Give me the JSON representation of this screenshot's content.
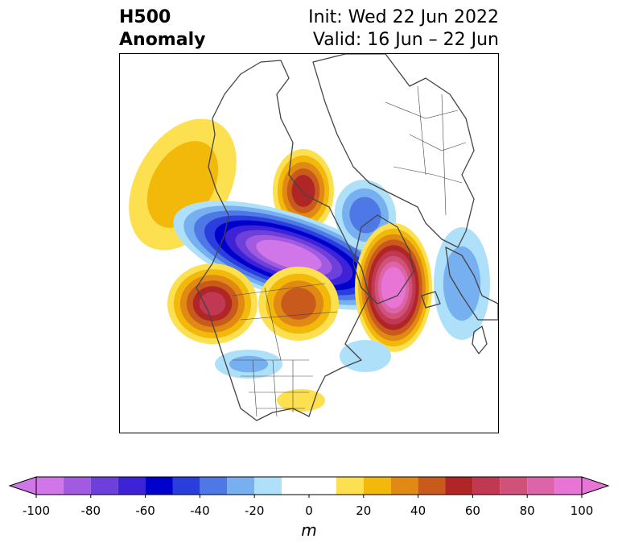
{
  "header": {
    "left_line1": "H500",
    "left_line2": "Anomaly",
    "right_line1": "Init: Wed 22 Jun 2022",
    "right_line2": "Valid: 16 Jun – 22 Jun"
  },
  "colorbar": {
    "unit": "m",
    "ticks": [
      "-100",
      "-80",
      "-60",
      "-40",
      "-20",
      "0",
      "20",
      "40",
      "60",
      "80",
      "100"
    ],
    "tick_values": [
      -100,
      -80,
      -60,
      -40,
      -20,
      0,
      20,
      40,
      60,
      80,
      100
    ],
    "range": [
      -100,
      100
    ],
    "extend": "both",
    "bins": [
      {
        "from": -100,
        "to": -90,
        "color": "#d176e8"
      },
      {
        "from": -90,
        "to": -80,
        "color": "#a15ae0"
      },
      {
        "from": -80,
        "to": -70,
        "color": "#6d3fdb"
      },
      {
        "from": -70,
        "to": -60,
        "color": "#3d22d7"
      },
      {
        "from": -60,
        "to": -50,
        "color": "#0000cc"
      },
      {
        "from": -50,
        "to": -40,
        "color": "#2a3ddd"
      },
      {
        "from": -40,
        "to": -30,
        "color": "#4d78e6"
      },
      {
        "from": -30,
        "to": -20,
        "color": "#77b0f0"
      },
      {
        "from": -20,
        "to": -10,
        "color": "#aee0fa"
      },
      {
        "from": -10,
        "to": 10,
        "color": "#ffffff"
      },
      {
        "from": 10,
        "to": 20,
        "color": "#fde04f"
      },
      {
        "from": 20,
        "to": 30,
        "color": "#f2b90b"
      },
      {
        "from": 30,
        "to": 40,
        "color": "#e08a14"
      },
      {
        "from": 40,
        "to": 50,
        "color": "#c85b1c"
      },
      {
        "from": 50,
        "to": 60,
        "color": "#b02626"
      },
      {
        "from": 60,
        "to": 70,
        "color": "#c03851"
      },
      {
        "from": 70,
        "to": 80,
        "color": "#d0527a"
      },
      {
        "from": 80,
        "to": 90,
        "color": "#dc64a8"
      },
      {
        "from": 90,
        "to": 100,
        "color": "#e874d5"
      }
    ],
    "under_color": "#d176e8",
    "over_color": "#e874d5"
  },
  "map": {
    "projection": "polar stereographic (Northern Hemisphere)",
    "coastline_color": "#444444",
    "anomaly_centers": [
      {
        "name": "north-pacific-ridge",
        "peak": 25
      },
      {
        "name": "bering-siberia-ridge",
        "peak": 55
      },
      {
        "name": "polar-trough",
        "peak": -95
      },
      {
        "name": "hudson-bay-trough",
        "peak": -35
      },
      {
        "name": "western-canada-ridge",
        "peak": 45
      },
      {
        "name": "gulf-of-alaska-ridge",
        "peak": 60
      },
      {
        "name": "north-atlantic-ridge",
        "peak": 100
      },
      {
        "name": "east-pacific-trough",
        "peak": -20
      },
      {
        "name": "eastern-us-trough",
        "peak": -15
      },
      {
        "name": "southern-us-ridge",
        "peak": 15
      },
      {
        "name": "west-europe-trough",
        "peak": -25
      }
    ]
  }
}
